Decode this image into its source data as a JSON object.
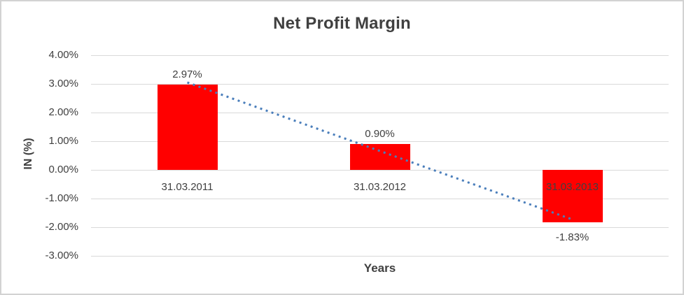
{
  "chart_data": {
    "type": "bar",
    "title": "Net Profit Margin",
    "xlabel": "Years",
    "ylabel": "IN (%)",
    "categories": [
      "31.03.2011",
      "31.03.2012",
      "31.03.2013"
    ],
    "values": [
      2.97,
      0.9,
      -1.83
    ],
    "data_labels": [
      "2.97%",
      "0.90%",
      "-1.83%"
    ],
    "ylim": [
      -3,
      4
    ],
    "y_ticks": [
      {
        "value": 4,
        "label": "4.00%"
      },
      {
        "value": 3,
        "label": "3.00%"
      },
      {
        "value": 2,
        "label": "2.00%"
      },
      {
        "value": 1,
        "label": "1.00%"
      },
      {
        "value": 0,
        "label": "0.00%"
      },
      {
        "value": -1,
        "label": "-1.00%"
      },
      {
        "value": -2,
        "label": "-2.00%"
      },
      {
        "value": -3,
        "label": "-3.00%"
      }
    ],
    "gridlines": true,
    "legend": "none",
    "bar_color": "#ff0000",
    "grid_color": "#d9d9d9",
    "text_color": "#404040",
    "trendline": {
      "type": "linear",
      "style": "dotted",
      "color": "#4a7ebb",
      "start_value": 3.05,
      "end_value": -1.73
    }
  }
}
